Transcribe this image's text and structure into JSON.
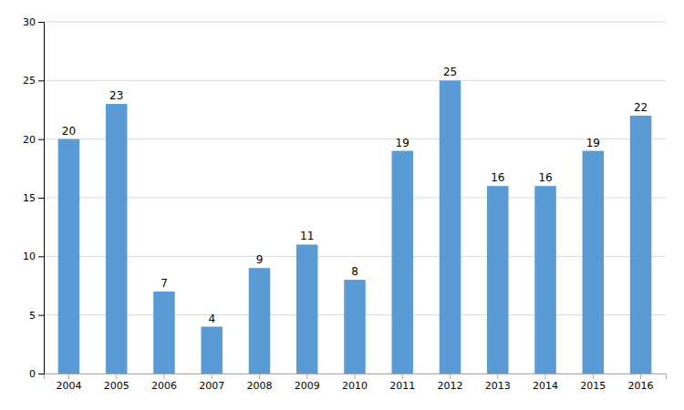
{
  "chart_data": {
    "type": "bar",
    "categories": [
      "2004",
      "2005",
      "2006",
      "2007",
      "2008",
      "2009",
      "2010",
      "2011",
      "2012",
      "2013",
      "2014",
      "2015",
      "2016"
    ],
    "values": [
      20,
      23,
      7,
      4,
      9,
      11,
      8,
      19,
      25,
      16,
      16,
      19,
      22
    ],
    "color": "#5b9bd5",
    "ylim": [
      0,
      30
    ],
    "yticks": [
      0,
      5,
      10,
      15,
      20,
      25,
      30
    ],
    "grid": true,
    "data_labels": true
  }
}
